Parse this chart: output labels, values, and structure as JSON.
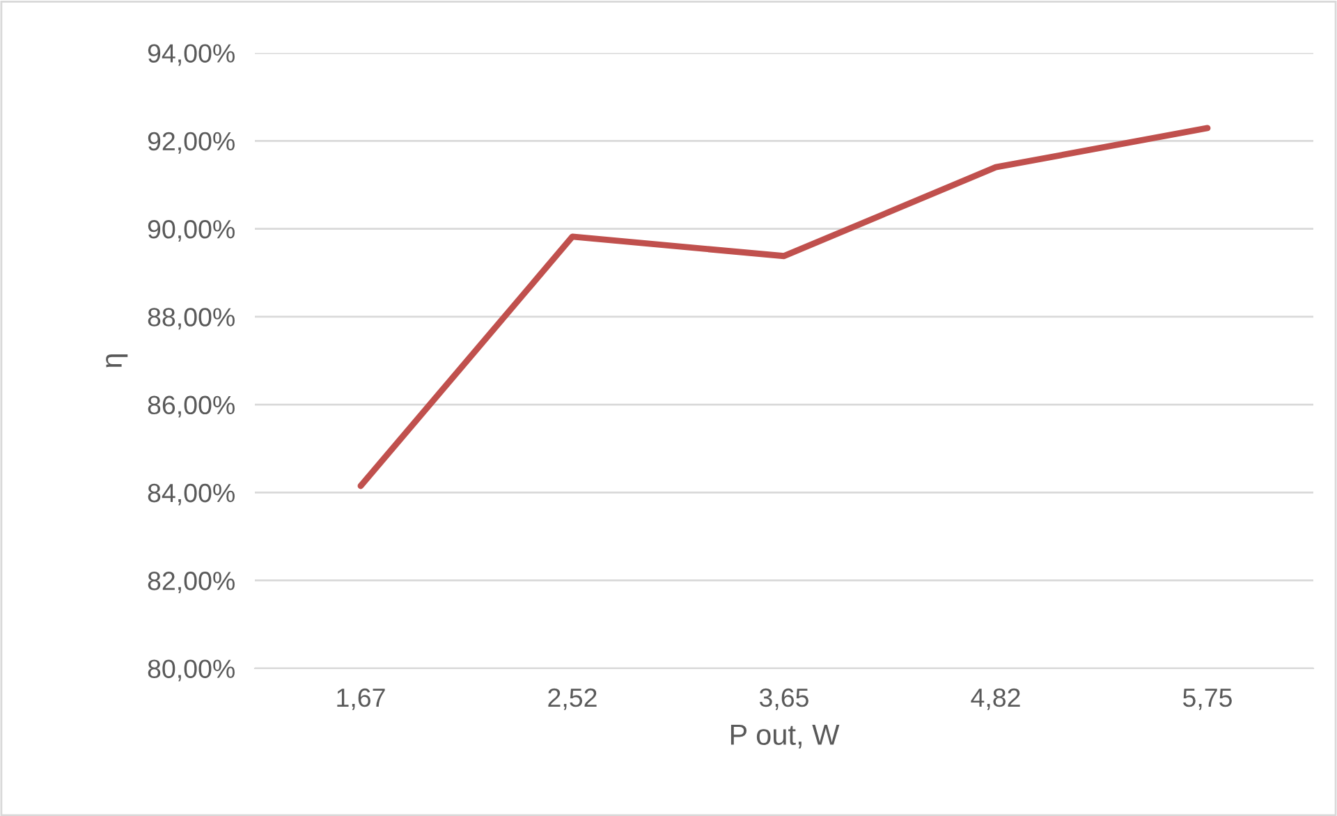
{
  "chart_data": {
    "type": "line",
    "xlabel": "P out, W",
    "ylabel": "η",
    "categories": [
      "1,67",
      "2,52",
      "3,65",
      "4,82",
      "5,75"
    ],
    "series": [
      {
        "color": "#c0504d",
        "values": [
          84.15,
          89.82,
          89.38,
          91.4,
          92.29
        ]
      }
    ],
    "ylim": [
      80,
      94
    ],
    "yticks": [
      {
        "value": 80,
        "label": "80,00%"
      },
      {
        "value": 82,
        "label": "82,00%"
      },
      {
        "value": 84,
        "label": "84,00%"
      },
      {
        "value": 86,
        "label": "86,00%"
      },
      {
        "value": 88,
        "label": "88,00%"
      },
      {
        "value": 90,
        "label": "90,00%"
      },
      {
        "value": 92,
        "label": "92,00%"
      },
      {
        "value": 94,
        "label": "94,00%"
      }
    ],
    "grid": "y",
    "marker": "none",
    "line_style": "solid"
  }
}
